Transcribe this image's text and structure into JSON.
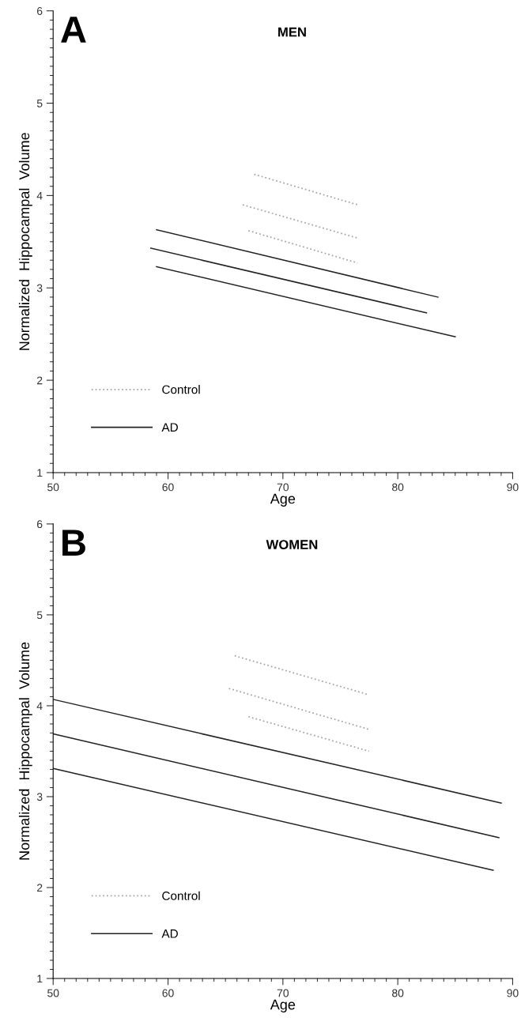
{
  "chart_data": [
    {
      "type": "line",
      "title": "MEN",
      "xlabel": "Age",
      "ylabel": "Normalized  Hippocampal  Volume",
      "annotations": [
        "A"
      ],
      "xlim": [
        50,
        90
      ],
      "xticks": [
        50,
        60,
        70,
        80,
        90
      ],
      "ylim": [
        1,
        6
      ],
      "yticks": [
        1,
        2,
        3,
        4,
        5,
        6
      ],
      "grid": false,
      "legend": "bottom left",
      "marker": "none",
      "series": [
        {
          "name": "Control",
          "color": "#a8a8a8",
          "line_style": "dotted",
          "x": [
            67.5,
            76.5
          ],
          "values": [
            4.23,
            3.9
          ]
        },
        {
          "color": "#a8a8a8",
          "line_style": "dotted",
          "x": [
            66.5,
            76.5
          ],
          "values": [
            3.9,
            3.54
          ]
        },
        {
          "color": "#a8a8a8",
          "line_style": "dotted",
          "x": [
            67,
            76.5
          ],
          "values": [
            3.62,
            3.27
          ]
        },
        {
          "name": "AD",
          "color": "#222222",
          "line_style": "solid",
          "x": [
            59,
            83.5
          ],
          "values": [
            3.63,
            2.9
          ]
        },
        {
          "color": "#222222",
          "line_style": "solid",
          "x": [
            58.5,
            82.5
          ],
          "values": [
            3.43,
            2.73
          ]
        },
        {
          "color": "#222222",
          "line_style": "solid",
          "x": [
            59,
            85
          ],
          "values": [
            3.23,
            2.47
          ]
        }
      ]
    },
    {
      "type": "line",
      "title": "WOMEN",
      "xlabel": "Age",
      "ylabel": "Normalized  Hippocampal  Volume",
      "annotations": [
        "B"
      ],
      "xlim": [
        50,
        90
      ],
      "xticks": [
        50,
        60,
        70,
        80,
        90
      ],
      "ylim": [
        1,
        6
      ],
      "yticks": [
        1,
        2,
        3,
        4,
        5,
        6
      ],
      "grid": false,
      "legend": "bottom left",
      "marker": "none",
      "series": [
        {
          "name": "Control",
          "color": "#a8a8a8",
          "line_style": "dotted",
          "x": [
            65.8,
            77.5
          ],
          "values": [
            4.55,
            4.12
          ]
        },
        {
          "color": "#a8a8a8",
          "line_style": "dotted",
          "x": [
            65.3,
            77.5
          ],
          "values": [
            4.19,
            3.74
          ]
        },
        {
          "color": "#a8a8a8",
          "line_style": "dotted",
          "x": [
            67,
            77.5
          ],
          "values": [
            3.88,
            3.5
          ]
        },
        {
          "name": "AD",
          "color": "#222222",
          "line_style": "solid",
          "x": [
            50,
            89
          ],
          "values": [
            4.07,
            2.93
          ]
        },
        {
          "color": "#222222",
          "line_style": "solid",
          "x": [
            50,
            88.8
          ],
          "values": [
            3.69,
            2.55
          ]
        },
        {
          "color": "#222222",
          "line_style": "solid",
          "x": [
            50,
            88.3
          ],
          "values": [
            3.31,
            2.19
          ]
        }
      ]
    }
  ]
}
